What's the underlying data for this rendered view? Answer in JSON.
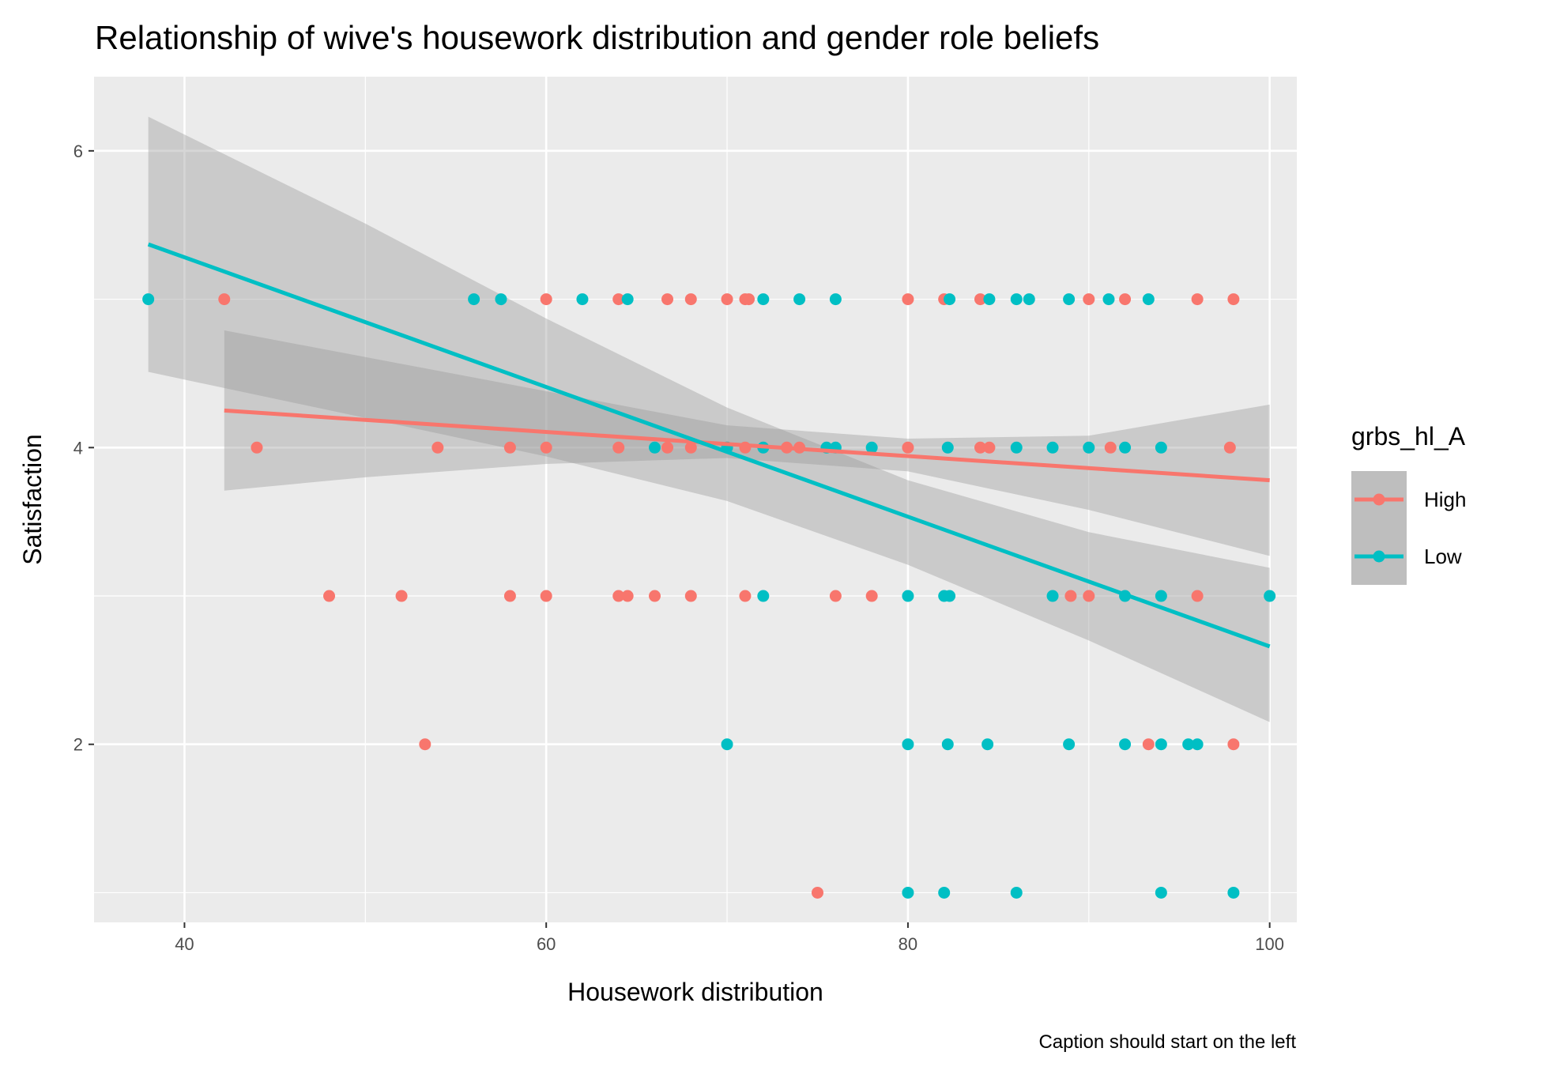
{
  "chart_data": {
    "type": "scatter",
    "title": "Relationship of wive's housework distribution and gender role beliefs",
    "xlabel": "Housework distribution",
    "ylabel": "Satisfaction",
    "caption": "Caption should start on the left",
    "xlim": [
      35,
      101.5
    ],
    "ylim": [
      0.8,
      6.5
    ],
    "x_ticks": [
      40,
      60,
      80,
      100
    ],
    "y_ticks": [
      2,
      4,
      6
    ],
    "grid": true,
    "legend": {
      "title": "grbs_hl_A",
      "placement": "right"
    },
    "colors": {
      "High": "#F8766D",
      "Low": "#00BFC4",
      "panel": "#EBEBEB",
      "ribbon": "#999999"
    },
    "series": [
      {
        "name": "High",
        "color": "#F8766D",
        "points": [
          [
            42.2,
            5
          ],
          [
            60,
            5
          ],
          [
            64,
            5
          ],
          [
            66.7,
            5
          ],
          [
            68,
            5
          ],
          [
            70,
            5
          ],
          [
            71,
            5
          ],
          [
            71.2,
            5
          ],
          [
            80,
            5
          ],
          [
            82,
            5
          ],
          [
            84,
            5
          ],
          [
            90,
            5
          ],
          [
            92,
            5
          ],
          [
            96,
            5
          ],
          [
            98,
            5
          ],
          [
            44,
            4
          ],
          [
            54,
            4
          ],
          [
            58,
            4
          ],
          [
            60,
            4
          ],
          [
            64,
            4
          ],
          [
            66.7,
            4
          ],
          [
            68,
            4
          ],
          [
            70,
            4
          ],
          [
            71,
            4
          ],
          [
            73.3,
            4
          ],
          [
            74,
            4
          ],
          [
            80,
            4
          ],
          [
            84,
            4
          ],
          [
            84.5,
            4
          ],
          [
            91.2,
            4
          ],
          [
            97.8,
            4
          ],
          [
            48,
            3
          ],
          [
            52,
            3
          ],
          [
            58,
            3
          ],
          [
            60,
            3
          ],
          [
            64,
            3
          ],
          [
            64.5,
            3
          ],
          [
            66,
            3
          ],
          [
            68,
            3
          ],
          [
            71,
            3
          ],
          [
            76,
            3
          ],
          [
            78,
            3
          ],
          [
            89,
            3
          ],
          [
            90,
            3
          ],
          [
            96,
            3
          ],
          [
            53.3,
            2
          ],
          [
            93.3,
            2
          ],
          [
            98,
            2
          ],
          [
            75,
            1
          ]
        ],
        "fit": {
          "x": [
            42.2,
            100
          ],
          "y": [
            4.25,
            3.78
          ]
        },
        "ribbon": {
          "x": [
            42.2,
            50,
            60,
            70,
            80,
            90,
            100
          ],
          "lower": [
            3.71,
            3.8,
            3.89,
            3.93,
            3.84,
            3.58,
            3.27
          ],
          "upper": [
            4.79,
            4.61,
            4.38,
            4.15,
            4.06,
            4.08,
            4.29
          ]
        }
      },
      {
        "name": "Low",
        "color": "#00BFC4",
        "points": [
          [
            38,
            5
          ],
          [
            56,
            5
          ],
          [
            57.5,
            5
          ],
          [
            62,
            5
          ],
          [
            64.5,
            5
          ],
          [
            72,
            5
          ],
          [
            74,
            5
          ],
          [
            76,
            5
          ],
          [
            82.3,
            5
          ],
          [
            84.5,
            5
          ],
          [
            86,
            5
          ],
          [
            86.7,
            5
          ],
          [
            88.9,
            5
          ],
          [
            91.1,
            5
          ],
          [
            93.3,
            5
          ],
          [
            66,
            4
          ],
          [
            70,
            4
          ],
          [
            72,
            4
          ],
          [
            75.5,
            4
          ],
          [
            76,
            4
          ],
          [
            78,
            4
          ],
          [
            82.2,
            4
          ],
          [
            86,
            4
          ],
          [
            88,
            4
          ],
          [
            90,
            4
          ],
          [
            92,
            4
          ],
          [
            94,
            4
          ],
          [
            72,
            3
          ],
          [
            80,
            3
          ],
          [
            82,
            3
          ],
          [
            82.3,
            3
          ],
          [
            88,
            3
          ],
          [
            92,
            3
          ],
          [
            94,
            3
          ],
          [
            100,
            3
          ],
          [
            70,
            2
          ],
          [
            80,
            2
          ],
          [
            82.2,
            2
          ],
          [
            84.4,
            2
          ],
          [
            88.9,
            2
          ],
          [
            92,
            2
          ],
          [
            94,
            2
          ],
          [
            95.5,
            2
          ],
          [
            96,
            2
          ],
          [
            80,
            1
          ],
          [
            82,
            1
          ],
          [
            86,
            1
          ],
          [
            94,
            1
          ],
          [
            98,
            1
          ]
        ],
        "fit": {
          "x": [
            38,
            100
          ],
          "y": [
            5.37,
            2.66
          ]
        },
        "ribbon": {
          "x": [
            38,
            50,
            60,
            70,
            80,
            90,
            100
          ],
          "lower": [
            4.51,
            4.2,
            3.94,
            3.64,
            3.21,
            2.7,
            2.15
          ],
          "upper": [
            6.23,
            5.51,
            4.87,
            4.27,
            3.78,
            3.43,
            3.19
          ]
        }
      }
    ]
  }
}
